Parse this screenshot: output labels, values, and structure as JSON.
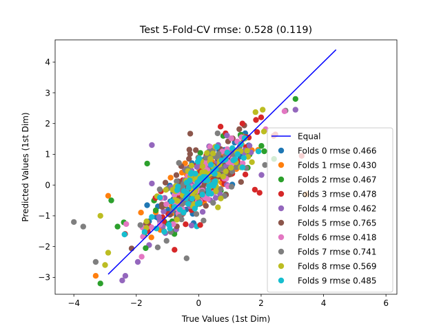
{
  "chart_data": {
    "type": "scatter",
    "title": "Test 5-Fold-CV rmse: 0.528 (0.119)",
    "xlabel": "True Values (1st Dim)",
    "ylabel": "Predicted Values (1st Dim)",
    "xlim": [
      -4.6,
      6.35
    ],
    "ylim": [
      -3.55,
      4.72
    ],
    "xticks": [
      -4,
      -2,
      0,
      2,
      4,
      6
    ],
    "yticks": [
      -3,
      -2,
      -1,
      0,
      1,
      2,
      3,
      4
    ],
    "grid": false,
    "legend_position": "lower-right",
    "reference_line": {
      "name": "Equal",
      "color": "#0000ff",
      "x": [
        -2.9,
        4.4
      ],
      "y": [
        -2.9,
        4.4
      ]
    },
    "series": [
      {
        "name": "Folds 0 rmse 0.466",
        "color": "#1f77b4"
      },
      {
        "name": "Folds 1 rmse 0.430",
        "color": "#ff7f0e"
      },
      {
        "name": "Folds 2 rmse 0.467",
        "color": "#2ca02c"
      },
      {
        "name": "Folds 3 rmse 0.478",
        "color": "#d62728"
      },
      {
        "name": "Folds 4 rmse 0.462",
        "color": "#9467bd"
      },
      {
        "name": "Folds 5 rmse 0.765",
        "color": "#8c564b"
      },
      {
        "name": "Folds 6 rmse 0.418",
        "color": "#e377c2"
      },
      {
        "name": "Folds 7 rmse 0.741",
        "color": "#7f7f7f"
      },
      {
        "name": "Folds 8 rmse 0.569",
        "color": "#bcbd22"
      },
      {
        "name": "Folds 9 rmse 0.485",
        "color": "#17becf"
      }
    ],
    "outlier_points": [
      {
        "series": 7,
        "x": -4.0,
        "y": -1.2
      },
      {
        "series": 7,
        "x": -3.7,
        "y": -1.35
      },
      {
        "series": 7,
        "x": -3.3,
        "y": -2.5
      },
      {
        "series": 1,
        "x": -3.3,
        "y": -2.95
      },
      {
        "series": 2,
        "x": -3.15,
        "y": -3.2
      },
      {
        "series": 8,
        "x": -3.15,
        "y": -1.0
      },
      {
        "series": 8,
        "x": -3.0,
        "y": -2.6
      },
      {
        "series": 8,
        "x": -2.9,
        "y": -2.2
      },
      {
        "series": 1,
        "x": -2.9,
        "y": -0.35
      },
      {
        "series": 2,
        "x": -2.8,
        "y": -0.5
      },
      {
        "series": 4,
        "x": -2.45,
        "y": -3.1
      },
      {
        "series": 4,
        "x": -2.35,
        "y": -2.95
      },
      {
        "series": 2,
        "x": -2.6,
        "y": -1.35
      },
      {
        "series": 4,
        "x": -1.95,
        "y": -2.5
      },
      {
        "series": 2,
        "x": -1.7,
        "y": -2.05
      },
      {
        "series": 2,
        "x": -1.65,
        "y": 0.7
      },
      {
        "series": 4,
        "x": -1.5,
        "y": 0.05
      },
      {
        "series": 4,
        "x": -1.5,
        "y": 1.3
      },
      {
        "series": 5,
        "x": -0.3,
        "y": 1.15
      },
      {
        "series": 3,
        "x": 0.05,
        "y": -1.3
      },
      {
        "series": 3,
        "x": 0.7,
        "y": 1.9
      },
      {
        "series": 3,
        "x": 1.4,
        "y": 2.0
      },
      {
        "series": 3,
        "x": 2.0,
        "y": 2.2
      },
      {
        "series": 8,
        "x": 2.05,
        "y": 2.45
      },
      {
        "series": 6,
        "x": 2.75,
        "y": 2.4
      },
      {
        "series": 4,
        "x": 3.1,
        "y": 2.45
      },
      {
        "series": 2,
        "x": 3.1,
        "y": 2.8
      },
      {
        "series": 1,
        "x": 3.45,
        "y": -0.3
      },
      {
        "series": 3,
        "x": 3.3,
        "y": 0.95
      },
      {
        "series": 3,
        "x": 2.4,
        "y": 1.6
      },
      {
        "series": 3,
        "x": 1.95,
        "y": -0.25
      },
      {
        "series": 2,
        "x": 2.1,
        "y": 1.1
      },
      {
        "series": 3,
        "x": 1.8,
        "y": -0.15
      }
    ]
  }
}
